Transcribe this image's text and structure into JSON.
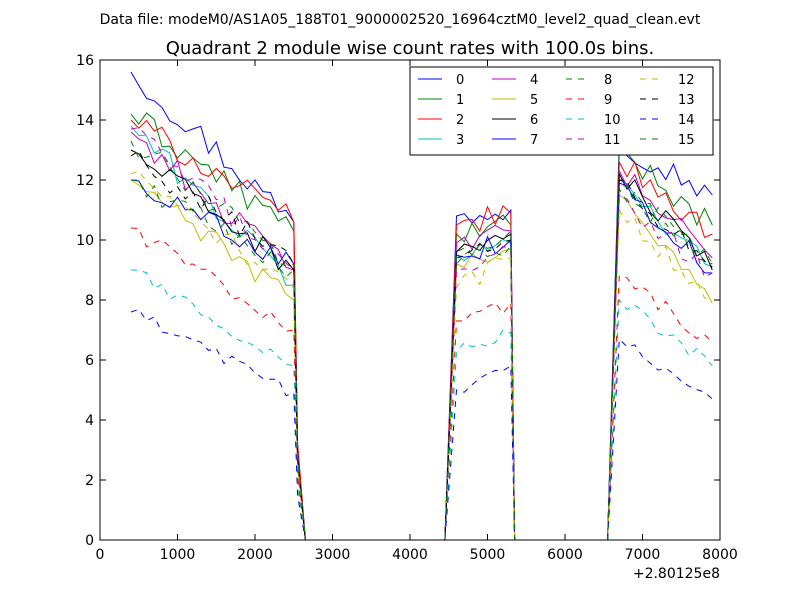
{
  "header": {
    "datafile": "Data file: modeM0/AS1A05_188T01_9000002520_16964cztM0_level2_quad_clean.evt"
  },
  "chart_data": {
    "type": "line",
    "title": "Quadrant 2 module wise count rates with 100.0s bins.",
    "xlabel": "",
    "ylabel": "",
    "x_offset_label": "+2.80125e8",
    "xlim": [
      0,
      8000
    ],
    "ylim": [
      0,
      16
    ],
    "xticks": [
      0,
      1000,
      2000,
      3000,
      4000,
      5000,
      6000,
      7000,
      8000
    ],
    "yticks": [
      0,
      2,
      4,
      6,
      8,
      10,
      12,
      14,
      16
    ],
    "grid": false,
    "legend_position": "top-right",
    "legend_columns": 4,
    "segments": [
      {
        "start": 400,
        "end": 2500
      },
      {
        "start": 4600,
        "end": 5300
      },
      {
        "start": 6700,
        "end": 7900
      }
    ],
    "zero_points": [
      2650,
      4450,
      5350,
      6550
    ],
    "series": [
      {
        "name": "0",
        "color": "#0000ff",
        "dash": "solid",
        "levels": [
          [
            15.6,
            10.6
          ],
          [
            10.8,
            11.0
          ],
          [
            13.3,
            11.5
          ]
        ]
      },
      {
        "name": "1",
        "color": "#008000",
        "dash": "solid",
        "levels": [
          [
            14.2,
            10.3
          ],
          [
            10.2,
            10.5
          ],
          [
            13.0,
            10.5
          ]
        ]
      },
      {
        "name": "2",
        "color": "#ff0000",
        "dash": "solid",
        "levels": [
          [
            14.0,
            10.6
          ],
          [
            10.5,
            10.9
          ],
          [
            12.6,
            10.2
          ]
        ]
      },
      {
        "name": "3",
        "color": "#00bfbf",
        "dash": "solid",
        "levels": [
          [
            13.8,
            8.5
          ],
          [
            9.5,
            9.9
          ],
          [
            12.0,
            9.1
          ]
        ]
      },
      {
        "name": "4",
        "color": "#bf00bf",
        "dash": "solid",
        "levels": [
          [
            13.6,
            9.0
          ],
          [
            9.9,
            10.3
          ],
          [
            12.3,
            9.4
          ]
        ]
      },
      {
        "name": "5",
        "color": "#bfbf00",
        "dash": "solid",
        "levels": [
          [
            12.0,
            8.0
          ],
          [
            9.2,
            9.7
          ],
          [
            11.5,
            7.9
          ]
        ]
      },
      {
        "name": "6",
        "color": "#000000",
        "dash": "solid",
        "levels": [
          [
            13.0,
            9.0
          ],
          [
            9.6,
            10.2
          ],
          [
            12.2,
            9.0
          ]
        ]
      },
      {
        "name": "7",
        "color": "#0000ff",
        "dash": "solid",
        "levels": [
          [
            12.0,
            9.2
          ],
          [
            9.5,
            10.0
          ],
          [
            11.9,
            8.9
          ]
        ]
      },
      {
        "name": "8",
        "color": "#008000",
        "dash": "dashed",
        "levels": [
          [
            12.0,
            9.0
          ],
          [
            9.2,
            9.8
          ],
          [
            11.7,
            9.2
          ]
        ]
      },
      {
        "name": "9",
        "color": "#ff0000",
        "dash": "dashed",
        "levels": [
          [
            10.4,
            7.0
          ],
          [
            7.3,
            7.9
          ],
          [
            8.8,
            6.6
          ]
        ]
      },
      {
        "name": "10",
        "color": "#00bfbf",
        "dash": "dashed",
        "levels": [
          [
            9.0,
            5.8
          ],
          [
            6.3,
            6.9
          ],
          [
            8.0,
            5.8
          ]
        ]
      },
      {
        "name": "11",
        "color": "#bf00bf",
        "dash": "dashed",
        "levels": [
          [
            13.7,
            9.0
          ],
          [
            9.0,
            9.7
          ],
          [
            11.4,
            8.9
          ]
        ]
      },
      {
        "name": "12",
        "color": "#bfbf00",
        "dash": "dashed",
        "levels": [
          [
            12.2,
            8.4
          ],
          [
            8.4,
            9.4
          ],
          [
            11.0,
            8.0
          ]
        ]
      },
      {
        "name": "13",
        "color": "#000000",
        "dash": "dashed",
        "levels": [
          [
            12.8,
            9.2
          ],
          [
            9.4,
            10.0
          ],
          [
            12.0,
            9.1
          ]
        ]
      },
      {
        "name": "14",
        "color": "#0000ff",
        "dash": "dashed",
        "levels": [
          [
            7.6,
            4.9
          ],
          [
            5.0,
            5.8
          ],
          [
            6.7,
            4.7
          ]
        ]
      },
      {
        "name": "15",
        "color": "#008000",
        "dash": "dashed",
        "levels": [
          [
            13.3,
            9.2
          ],
          [
            9.6,
            10.3
          ],
          [
            11.8,
            9.2
          ]
        ]
      }
    ]
  }
}
